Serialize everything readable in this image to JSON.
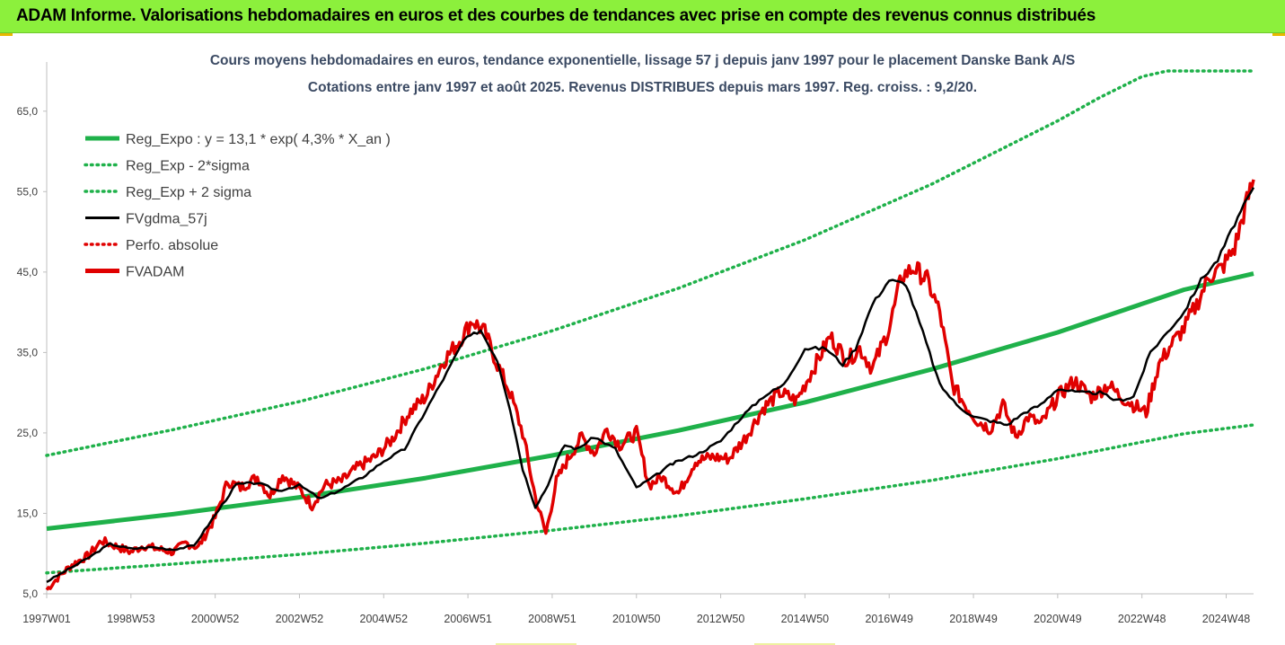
{
  "banner": {
    "title": "ADAM Informe. Valorisations hebdomadaires en euros et des courbes de tendances avec prise en compte des revenus connus distribués",
    "background": "#8cf03c"
  },
  "chart_data": {
    "type": "line",
    "title": "Cours moyens hebdomadaires en euros, tendance exponentielle, lissage 57 j depuis janv 1997  pour le placement Danske Bank A/S",
    "subtitle": "Cotations entre janv 1997 et août 2025.  Revenus DISTRIBUES depuis mars 1997. Reg. croiss. : 9,2/20.",
    "xlabel": "",
    "ylabel": "",
    "x_range": [
      1997.0,
      2025.65
    ],
    "ylim": [
      5,
      70
    ],
    "yticks": [
      "5,0",
      "15,0",
      "25,0",
      "35,0",
      "45,0",
      "55,0",
      "65,0"
    ],
    "ytick_values": [
      5,
      15,
      25,
      35,
      45,
      55,
      65
    ],
    "xticks": [
      "1997W01",
      "1998W53",
      "2000W52",
      "2002W52",
      "2004W52",
      "2006W51",
      "2008W51",
      "2010W50",
      "2012W50",
      "2014W50",
      "2016W49",
      "2018W49",
      "2020W49",
      "2022W48",
      "2024W48"
    ],
    "xtick_values": [
      1997.0,
      1999.0,
      2001.0,
      2003.0,
      2005.0,
      2007.0,
      2009.0,
      2011.0,
      2013.0,
      2015.0,
      2017.0,
      2019.0,
      2021.0,
      2023.0,
      2025.0
    ],
    "grid": false,
    "legend_position": "top-left",
    "legend": [
      {
        "name": "Reg_Expo : y = 13,1 * exp( 4,3% *  X_an )",
        "color": "#1fb14a",
        "style": "solid-thick"
      },
      {
        "name": "Reg_Exp - 2*sigma",
        "color": "#1fb14a",
        "style": "dotted"
      },
      {
        "name": "Reg_Exp + 2 sigma",
        "color": "#1fb14a",
        "style": "dotted"
      },
      {
        "name": "FVgdma_57j",
        "color": "#000000",
        "style": "solid"
      },
      {
        "name": "Perfo. absolue",
        "color": "#e00000",
        "style": "dotted"
      },
      {
        "name": "FVADAM",
        "color": "#e00000",
        "style": "solid-thick"
      }
    ],
    "series": [
      {
        "name": "Reg_Expo : y = 13,1 * exp( 4,3% *  X_an )",
        "color": "#1fb14a",
        "x": [
          1997.0,
          2000.0,
          2003.0,
          2006.0,
          2009.0,
          2012.0,
          2015.0,
          2018.0,
          2021.0,
          2024.0,
          2025.65
        ],
        "y": [
          13.1,
          14.9,
          17.0,
          19.4,
          22.2,
          25.3,
          28.8,
          32.9,
          37.5,
          42.8,
          44.8
        ]
      },
      {
        "name": "Reg_Exp - 2*sigma",
        "color": "#1fb14a",
        "x": [
          1997.0,
          2000.0,
          2003.0,
          2006.0,
          2009.0,
          2012.0,
          2015.0,
          2018.0,
          2021.0,
          2024.0,
          2025.65
        ],
        "y": [
          7.6,
          8.7,
          9.9,
          11.3,
          12.9,
          14.7,
          16.8,
          19.1,
          21.8,
          24.9,
          26.0
        ]
      },
      {
        "name": "Reg_Exp + 2 sigma",
        "color": "#1fb14a",
        "x": [
          1997.0,
          2000.0,
          2003.0,
          2006.0,
          2009.0,
          2012.0,
          2015.0,
          2018.0,
          2021.0,
          2022.0,
          2023.0,
          2023.6,
          2025.65
        ],
        "y": [
          22.2,
          25.4,
          28.9,
          33.0,
          37.7,
          43.0,
          49.0,
          55.9,
          63.8,
          66.7,
          69.3,
          70.0,
          70.0
        ]
      },
      {
        "name": "FVgdma_57j",
        "color": "#000000",
        "x": [
          1997.0,
          1997.5,
          1998.0,
          1998.5,
          1999.0,
          1999.5,
          2000.0,
          2000.5,
          2001.0,
          2001.5,
          2002.0,
          2002.5,
          2003.0,
          2003.5,
          2004.0,
          2004.5,
          2005.0,
          2005.5,
          2006.0,
          2006.5,
          2006.9,
          2007.3,
          2007.7,
          2008.0,
          2008.3,
          2008.6,
          2008.9,
          2009.1,
          2009.3,
          2009.6,
          2010.0,
          2010.5,
          2011.0,
          2011.4,
          2011.8,
          2012.0,
          2012.5,
          2013.0,
          2013.5,
          2014.0,
          2014.5,
          2015.0,
          2015.5,
          2015.9,
          2016.2,
          2016.6,
          2017.0,
          2017.4,
          2017.8,
          2018.2,
          2018.6,
          2019.0,
          2019.4,
          2019.8,
          2020.2,
          2020.6,
          2021.0,
          2021.5,
          2022.0,
          2022.4,
          2022.8,
          2023.2,
          2023.6,
          2024.0,
          2024.4,
          2024.8,
          2025.2,
          2025.65
        ],
        "y": [
          6.5,
          8.0,
          9.5,
          11.2,
          10.6,
          10.8,
          10.5,
          11.0,
          14.8,
          18.6,
          18.8,
          17.8,
          18.5,
          16.8,
          18.0,
          19.5,
          21.5,
          23.0,
          27.8,
          32.5,
          36.5,
          37.8,
          34.0,
          28.0,
          20.5,
          15.8,
          18.5,
          21.5,
          23.5,
          23.0,
          24.5,
          23.0,
          18.2,
          19.5,
          21.0,
          21.5,
          22.5,
          24.0,
          27.0,
          29.5,
          31.0,
          35.5,
          35.5,
          33.5,
          35.5,
          41.0,
          44.0,
          43.5,
          37.5,
          31.0,
          28.5,
          27.0,
          26.5,
          26.0,
          27.5,
          28.5,
          30.5,
          30.0,
          30.0,
          29.0,
          29.5,
          35.0,
          37.5,
          40.0,
          44.0,
          46.5,
          51.0,
          55.5
        ]
      },
      {
        "name": "FVADAM",
        "color": "#e00000",
        "x": [
          1997.0,
          1997.3,
          1997.6,
          1998.0,
          1998.3,
          1998.6,
          1999.0,
          1999.3,
          1999.6,
          2000.0,
          2000.3,
          2000.6,
          2001.0,
          2001.3,
          2001.6,
          2002.0,
          2002.3,
          2002.6,
          2003.0,
          2003.3,
          2003.6,
          2004.0,
          2004.4,
          2004.8,
          2005.2,
          2005.6,
          2006.0,
          2006.4,
          2006.8,
          2007.1,
          2007.4,
          2007.7,
          2008.0,
          2008.3,
          2008.6,
          2008.85,
          2009.1,
          2009.4,
          2009.7,
          2010.0,
          2010.3,
          2010.6,
          2011.0,
          2011.3,
          2011.6,
          2012.0,
          2012.4,
          2012.8,
          2013.2,
          2013.6,
          2014.0,
          2014.4,
          2014.8,
          2015.2,
          2015.6,
          2016.0,
          2016.3,
          2016.6,
          2017.0,
          2017.3,
          2017.6,
          2017.9,
          2018.2,
          2018.5,
          2018.8,
          2019.1,
          2019.4,
          2019.7,
          2020.0,
          2020.3,
          2020.6,
          2021.0,
          2021.4,
          2021.8,
          2022.2,
          2022.5,
          2022.8,
          2023.1,
          2023.4,
          2023.7,
          2024.0,
          2024.3,
          2024.6,
          2024.9,
          2025.2,
          2025.45,
          2025.65
        ],
        "y": [
          5.5,
          7.2,
          8.6,
          9.8,
          11.6,
          11.0,
          10.2,
          11.0,
          10.6,
          10.2,
          11.3,
          10.8,
          14.5,
          19.0,
          18.2,
          19.5,
          17.2,
          19.8,
          18.0,
          16.0,
          18.5,
          19.0,
          20.8,
          22.0,
          24.2,
          27.5,
          29.5,
          33.8,
          36.5,
          39.0,
          37.5,
          33.5,
          30.0,
          25.0,
          17.0,
          12.5,
          19.0,
          22.0,
          24.5,
          22.5,
          25.5,
          23.5,
          25.0,
          18.5,
          19.5,
          17.5,
          21.5,
          22.0,
          21.8,
          24.5,
          28.0,
          30.0,
          29.0,
          33.0,
          37.0,
          34.0,
          35.5,
          33.0,
          38.0,
          44.5,
          45.5,
          44.0,
          40.0,
          31.0,
          28.5,
          26.5,
          25.5,
          28.5,
          24.5,
          27.0,
          26.0,
          29.5,
          31.5,
          29.5,
          31.0,
          29.5,
          28.5,
          27.5,
          33.5,
          36.0,
          38.0,
          41.0,
          44.5,
          45.5,
          48.0,
          53.0,
          56.5
        ]
      }
    ]
  }
}
